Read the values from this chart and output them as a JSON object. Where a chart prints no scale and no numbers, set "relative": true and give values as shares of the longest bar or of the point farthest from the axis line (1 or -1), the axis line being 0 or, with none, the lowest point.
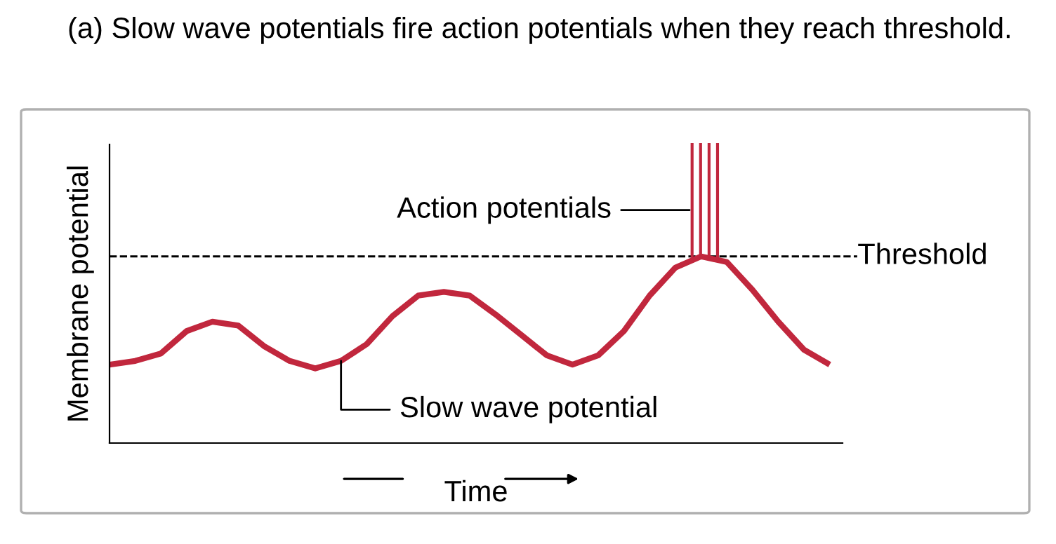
{
  "chart_data": {
    "type": "line",
    "relative": true,
    "title": "(a) Slow wave potentials fire action potentials when they reach threshold.",
    "xlabel": "Time",
    "ylabel": "Membrane potential",
    "marker": "none",
    "categories": [
      null,
      null,
      null,
      null,
      null,
      null,
      null,
      null,
      null,
      null,
      null,
      null,
      null,
      null,
      null,
      null,
      null,
      null,
      null,
      null,
      null,
      null,
      null,
      null,
      null,
      null,
      null,
      null,
      null
    ],
    "series": [
      {
        "color": "#c1273d",
        "values": [
          0.42,
          0.44,
          0.48,
          0.6,
          0.65,
          0.63,
          0.52,
          0.44,
          0.4,
          0.44,
          0.53,
          0.68,
          0.79,
          0.81,
          0.79,
          0.69,
          0.58,
          0.47,
          0.42,
          0.47,
          0.6,
          0.79,
          0.94,
          1,
          0.97,
          0.82,
          0.65,
          0.5,
          0.42
        ]
      }
    ],
    "ref_lines": [
      {
        "axis": "y",
        "value": 1,
        "label": "Threshold",
        "color": "#000000",
        "line_style": "dashed"
      }
    ],
    "annotations": [
      "Action potentials",
      "Slow wave potential"
    ]
  }
}
